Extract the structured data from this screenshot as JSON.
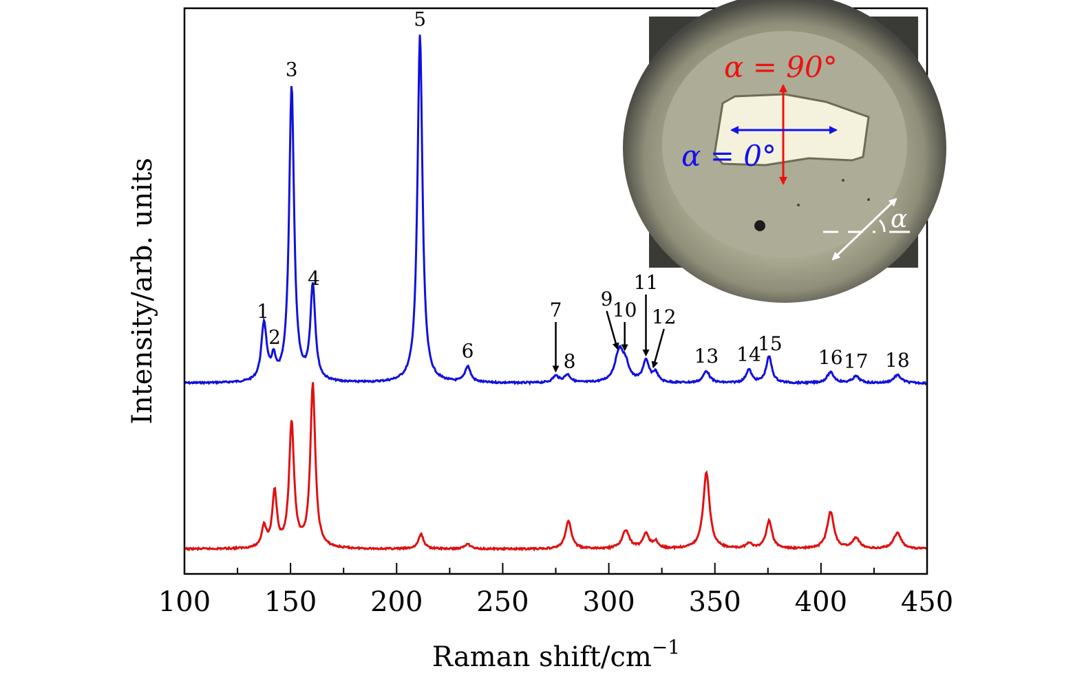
{
  "chart_data": {
    "type": "line",
    "xlabel": "Raman shift/cm",
    "xlabel_sup": "−1",
    "ylabel": "Intensity/arb. units",
    "xlim": [
      100,
      450
    ],
    "ylim": [
      0,
      1.3
    ],
    "grid": false,
    "x_ticks": [
      100,
      150,
      200,
      250,
      300,
      350,
      400,
      450
    ],
    "series": [
      {
        "color": "#1010dd",
        "offset": 0.62,
        "peaks": [
          {
            "x": 137.5,
            "height": 0.22,
            "width": 1.5
          },
          {
            "x": 142.0,
            "height": 0.075,
            "width": 1.2
          },
          {
            "x": 150.5,
            "height": 1.12,
            "width": 1.4
          },
          {
            "x": 160.5,
            "height": 0.36,
            "width": 1.4
          },
          {
            "x": 211.0,
            "height": 1.32,
            "width": 1.4
          },
          {
            "x": 233.5,
            "height": 0.06,
            "width": 1.6
          },
          {
            "x": 275.0,
            "height": 0.025,
            "width": 1.8
          },
          {
            "x": 280.5,
            "height": 0.03,
            "width": 1.8
          },
          {
            "x": 305.0,
            "height": 0.12,
            "width": 2.5
          },
          {
            "x": 308.0,
            "height": 0.05,
            "width": 2.0
          },
          {
            "x": 317.5,
            "height": 0.08,
            "width": 1.8
          },
          {
            "x": 322.0,
            "height": 0.035,
            "width": 1.5
          },
          {
            "x": 346.0,
            "height": 0.045,
            "width": 1.8
          },
          {
            "x": 366.0,
            "height": 0.05,
            "width": 1.6
          },
          {
            "x": 375.5,
            "height": 0.1,
            "width": 1.6
          },
          {
            "x": 404.5,
            "height": 0.04,
            "width": 2.0
          },
          {
            "x": 416.5,
            "height": 0.025,
            "width": 2.0
          },
          {
            "x": 436.0,
            "height": 0.03,
            "width": 2.2
          }
        ]
      },
      {
        "color": "#e01010",
        "offset": 0.0,
        "peaks": [
          {
            "x": 137.5,
            "height": 0.08,
            "width": 1.3
          },
          {
            "x": 142.5,
            "height": 0.21,
            "width": 1.3
          },
          {
            "x": 150.5,
            "height": 0.47,
            "width": 1.4
          },
          {
            "x": 160.5,
            "height": 0.62,
            "width": 1.4
          },
          {
            "x": 211.5,
            "height": 0.055,
            "width": 1.5
          },
          {
            "x": 233.5,
            "height": 0.02,
            "width": 1.6
          },
          {
            "x": 281.0,
            "height": 0.105,
            "width": 1.7
          },
          {
            "x": 308.0,
            "height": 0.07,
            "width": 2.0
          },
          {
            "x": 317.5,
            "height": 0.055,
            "width": 1.8
          },
          {
            "x": 322.0,
            "height": 0.025,
            "width": 1.5
          },
          {
            "x": 346.0,
            "height": 0.29,
            "width": 1.8
          },
          {
            "x": 366.0,
            "height": 0.02,
            "width": 1.6
          },
          {
            "x": 375.5,
            "height": 0.105,
            "width": 1.7
          },
          {
            "x": 404.5,
            "height": 0.14,
            "width": 1.9
          },
          {
            "x": 416.5,
            "height": 0.04,
            "width": 2.0
          },
          {
            "x": 436.0,
            "height": 0.06,
            "width": 2.2
          }
        ]
      }
    ],
    "annotations": [
      {
        "label": "1",
        "x": 137.0
      },
      {
        "label": "2",
        "x": 142.5
      },
      {
        "label": "3",
        "x": 150.5
      },
      {
        "label": "4",
        "x": 161.0
      },
      {
        "label": "5",
        "x": 211.0
      },
      {
        "label": "6",
        "x": 233.5
      },
      {
        "label": "7",
        "x": 275.0
      },
      {
        "label": "8",
        "x": 281.5
      },
      {
        "label": "9",
        "x": 299.0
      },
      {
        "label": "10",
        "x": 307.5
      },
      {
        "label": "11",
        "x": 317.5
      },
      {
        "label": "12",
        "x": 326.0
      },
      {
        "label": "13",
        "x": 346.0
      },
      {
        "label": "14",
        "x": 366.0
      },
      {
        "label": "15",
        "x": 376.0
      },
      {
        "label": "16",
        "x": 404.5
      },
      {
        "label": "17",
        "x": 416.5
      },
      {
        "label": "18",
        "x": 436.0
      }
    ],
    "inset": {
      "label_90": "α = 90°",
      "label_0": "α = 0°",
      "label_alpha": "α",
      "color_90": "#ee1111",
      "color_0": "#1111ee"
    }
  }
}
